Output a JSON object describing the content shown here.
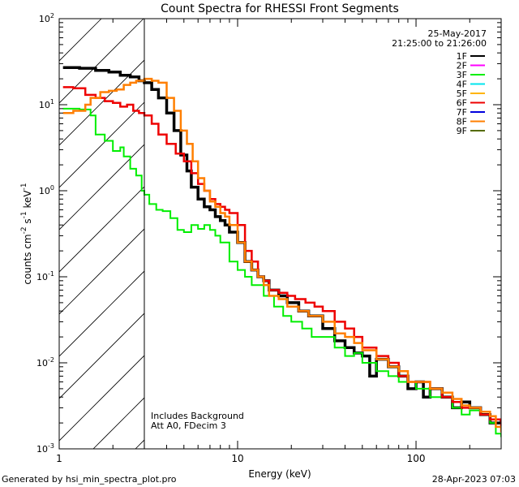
{
  "chart_data": {
    "type": "line",
    "title": "Count Spectra for RHESSI Front Segments",
    "xlabel": "Energy (keV)",
    "ylabel": "counts cm",
    "ylabel_sup1": "-2",
    "ylabel_mid": " s",
    "ylabel_sup2": "-1",
    "ylabel_end": " keV",
    "ylabel_sup3": "-1",
    "x_scale": "log",
    "y_scale": "log",
    "xlim": [
      1.0,
      300
    ],
    "ylim": [
      0.001,
      100
    ],
    "x_ticks": [
      {
        "value": 1,
        "label": "1"
      },
      {
        "value": 10,
        "label": "10"
      },
      {
        "value": 100,
        "label": "100"
      }
    ],
    "y_ticks": [
      {
        "value": 0.001,
        "base": "10",
        "exp": "-3"
      },
      {
        "value": 0.01,
        "base": "10",
        "exp": "-2"
      },
      {
        "value": 0.1,
        "base": "10",
        "exp": "-1"
      },
      {
        "value": 1,
        "base": "10",
        "exp": "0"
      },
      {
        "value": 10,
        "base": "10",
        "exp": "1"
      },
      {
        "value": 100,
        "base": "10",
        "exp": "2"
      }
    ],
    "shaded_region": {
      "x_from": 1.0,
      "x_to": 3.0,
      "style": "hatched"
    },
    "vertical_line_x": 3.0,
    "date": "25-May-2017",
    "time_range": "21:25:00 to 21:26:00",
    "annotations": [
      "Includes Background",
      "Att A0, FDecim 3"
    ],
    "legend": [
      {
        "name": "1F",
        "color": "#000000"
      },
      {
        "name": "2F",
        "color": "#ff00ff"
      },
      {
        "name": "3F",
        "color": "#00ee00"
      },
      {
        "name": "4F",
        "color": "#00e5ee"
      },
      {
        "name": "5F",
        "color": "#ffb400"
      },
      {
        "name": "6F",
        "color": "#ee0000"
      },
      {
        "name": "7F",
        "color": "#0000dd"
      },
      {
        "name": "8F",
        "color": "#ff7f00"
      },
      {
        "name": "9F",
        "color": "#556b00"
      }
    ],
    "series": [
      {
        "name": "1F",
        "color": "#000000",
        "width": 3.5,
        "points": [
          [
            1.05,
            27
          ],
          [
            1.3,
            26.5
          ],
          [
            1.6,
            25
          ],
          [
            1.9,
            24
          ],
          [
            2.2,
            22
          ],
          [
            2.5,
            21
          ],
          [
            2.8,
            19
          ],
          [
            3.0,
            18
          ],
          [
            3.3,
            15
          ],
          [
            3.6,
            12
          ],
          [
            4.0,
            8
          ],
          [
            4.4,
            5
          ],
          [
            4.8,
            2.6
          ],
          [
            5.2,
            1.7
          ],
          [
            5.5,
            1.1
          ],
          [
            6,
            0.8
          ],
          [
            6.5,
            0.65
          ],
          [
            7,
            0.6
          ],
          [
            7.5,
            0.5
          ],
          [
            8,
            0.45
          ],
          [
            8.5,
            0.4
          ],
          [
            9,
            0.33
          ],
          [
            10,
            0.25
          ],
          [
            11,
            0.15
          ],
          [
            12,
            0.12
          ],
          [
            13,
            0.1
          ],
          [
            14,
            0.09
          ],
          [
            15,
            0.07
          ],
          [
            17,
            0.06
          ],
          [
            19,
            0.05
          ],
          [
            22,
            0.04
          ],
          [
            25,
            0.035
          ],
          [
            30,
            0.025
          ],
          [
            35,
            0.018
          ],
          [
            40,
            0.015
          ],
          [
            45,
            0.013
          ],
          [
            50,
            0.012
          ],
          [
            55,
            0.007
          ],
          [
            60,
            0.011
          ],
          [
            70,
            0.009
          ],
          [
            80,
            0.007
          ],
          [
            90,
            0.005
          ],
          [
            100,
            0.006
          ],
          [
            110,
            0.004
          ],
          [
            120,
            0.005
          ],
          [
            140,
            0.004
          ],
          [
            160,
            0.003
          ],
          [
            180,
            0.0035
          ],
          [
            200,
            0.003
          ],
          [
            230,
            0.0025
          ],
          [
            260,
            0.002
          ],
          [
            300,
            0.0021
          ]
        ]
      },
      {
        "name": "3F",
        "color": "#00ee00",
        "width": 2,
        "points": [
          [
            1.05,
            9
          ],
          [
            1.3,
            8.8
          ],
          [
            1.5,
            7.5
          ],
          [
            1.6,
            4.5
          ],
          [
            1.8,
            3.8
          ],
          [
            2.0,
            2.9
          ],
          [
            2.2,
            3.2
          ],
          [
            2.3,
            2.5
          ],
          [
            2.5,
            1.8
          ],
          [
            2.7,
            1.5
          ],
          [
            2.9,
            1.0
          ],
          [
            3.0,
            0.9
          ],
          [
            3.2,
            0.7
          ],
          [
            3.5,
            0.6
          ],
          [
            3.8,
            0.58
          ],
          [
            4.2,
            0.48
          ],
          [
            4.6,
            0.35
          ],
          [
            5.0,
            0.33
          ],
          [
            5.5,
            0.4
          ],
          [
            6,
            0.36
          ],
          [
            6.5,
            0.4
          ],
          [
            7,
            0.35
          ],
          [
            7.5,
            0.3
          ],
          [
            8,
            0.25
          ],
          [
            9,
            0.15
          ],
          [
            10,
            0.12
          ],
          [
            11,
            0.1
          ],
          [
            12,
            0.08
          ],
          [
            14,
            0.06
          ],
          [
            16,
            0.045
          ],
          [
            18,
            0.035
          ],
          [
            20,
            0.03
          ],
          [
            23,
            0.025
          ],
          [
            26,
            0.02
          ],
          [
            30,
            0.02
          ],
          [
            35,
            0.015
          ],
          [
            40,
            0.012
          ],
          [
            45,
            0.013
          ],
          [
            50,
            0.01
          ],
          [
            60,
            0.008
          ],
          [
            70,
            0.007
          ],
          [
            80,
            0.006
          ],
          [
            90,
            0.006
          ],
          [
            100,
            0.005
          ],
          [
            120,
            0.004
          ],
          [
            140,
            0.004
          ],
          [
            160,
            0.003
          ],
          [
            180,
            0.0025
          ],
          [
            200,
            0.0028
          ],
          [
            230,
            0.0025
          ],
          [
            260,
            0.002
          ],
          [
            280,
            0.0015
          ],
          [
            300,
            0.0014
          ]
        ]
      },
      {
        "name": "6F",
        "color": "#ee0000",
        "width": 2.5,
        "points": [
          [
            1.05,
            16
          ],
          [
            1.2,
            15.5
          ],
          [
            1.4,
            13
          ],
          [
            1.6,
            12
          ],
          [
            1.8,
            11
          ],
          [
            2.0,
            10.5
          ],
          [
            2.2,
            9.5
          ],
          [
            2.4,
            10
          ],
          [
            2.6,
            8.5
          ],
          [
            2.8,
            8
          ],
          [
            3.0,
            7.5
          ],
          [
            3.3,
            6
          ],
          [
            3.6,
            4.5
          ],
          [
            4.0,
            3.5
          ],
          [
            4.5,
            2.7
          ],
          [
            5.0,
            2.2
          ],
          [
            5.5,
            1.6
          ],
          [
            6,
            1.2
          ],
          [
            6.5,
            1.0
          ],
          [
            7,
            0.8
          ],
          [
            7.5,
            0.7
          ],
          [
            8,
            0.65
          ],
          [
            8.5,
            0.6
          ],
          [
            9,
            0.55
          ],
          [
            10,
            0.4
          ],
          [
            11,
            0.2
          ],
          [
            12,
            0.15
          ],
          [
            13,
            0.1
          ],
          [
            14,
            0.09
          ],
          [
            15,
            0.07
          ],
          [
            17,
            0.065
          ],
          [
            19,
            0.06
          ],
          [
            21,
            0.055
          ],
          [
            24,
            0.05
          ],
          [
            27,
            0.045
          ],
          [
            30,
            0.04
          ],
          [
            35,
            0.03
          ],
          [
            40,
            0.025
          ],
          [
            45,
            0.02
          ],
          [
            50,
            0.015
          ],
          [
            60,
            0.012
          ],
          [
            70,
            0.01
          ],
          [
            80,
            0.007
          ],
          [
            90,
            0.006
          ],
          [
            100,
            0.006
          ],
          [
            120,
            0.005
          ],
          [
            140,
            0.004
          ],
          [
            160,
            0.0035
          ],
          [
            180,
            0.003
          ],
          [
            200,
            0.003
          ],
          [
            230,
            0.0025
          ],
          [
            260,
            0.0022
          ],
          [
            300,
            0.0018
          ]
        ]
      },
      {
        "name": "8F",
        "color": "#ff7f00",
        "width": 2.5,
        "points": [
          [
            1.05,
            8
          ],
          [
            1.2,
            8.5
          ],
          [
            1.4,
            10
          ],
          [
            1.5,
            12
          ],
          [
            1.7,
            14
          ],
          [
            1.9,
            14.5
          ],
          [
            2.1,
            15
          ],
          [
            2.3,
            17
          ],
          [
            2.5,
            18
          ],
          [
            2.7,
            19
          ],
          [
            3.0,
            20
          ],
          [
            3.3,
            19
          ],
          [
            3.6,
            18
          ],
          [
            4.0,
            12
          ],
          [
            4.4,
            8.5
          ],
          [
            4.8,
            5
          ],
          [
            5.2,
            3.5
          ],
          [
            5.6,
            2.2
          ],
          [
            6,
            1.4
          ],
          [
            6.5,
            1.0
          ],
          [
            7,
            0.75
          ],
          [
            7.5,
            0.65
          ],
          [
            8,
            0.55
          ],
          [
            8.5,
            0.5
          ],
          [
            9,
            0.4
          ],
          [
            10,
            0.25
          ],
          [
            11,
            0.15
          ],
          [
            12,
            0.12
          ],
          [
            13,
            0.1
          ],
          [
            14,
            0.08
          ],
          [
            15,
            0.06
          ],
          [
            17,
            0.055
          ],
          [
            19,
            0.045
          ],
          [
            22,
            0.04
          ],
          [
            25,
            0.035
          ],
          [
            30,
            0.03
          ],
          [
            35,
            0.022
          ],
          [
            40,
            0.02
          ],
          [
            45,
            0.017
          ],
          [
            50,
            0.014
          ],
          [
            60,
            0.011
          ],
          [
            70,
            0.009
          ],
          [
            80,
            0.008
          ],
          [
            90,
            0.006
          ],
          [
            100,
            0.006
          ],
          [
            120,
            0.005
          ],
          [
            140,
            0.0045
          ],
          [
            160,
            0.0038
          ],
          [
            180,
            0.0032
          ],
          [
            200,
            0.003
          ],
          [
            230,
            0.0027
          ],
          [
            260,
            0.0024
          ],
          [
            280,
            0.0018
          ],
          [
            300,
            0.0016
          ]
        ]
      }
    ]
  },
  "footer": {
    "generated_by": "Generated by hsi_min_spectra_plot.pro",
    "generated_on": "28-Apr-2023 07:03"
  }
}
